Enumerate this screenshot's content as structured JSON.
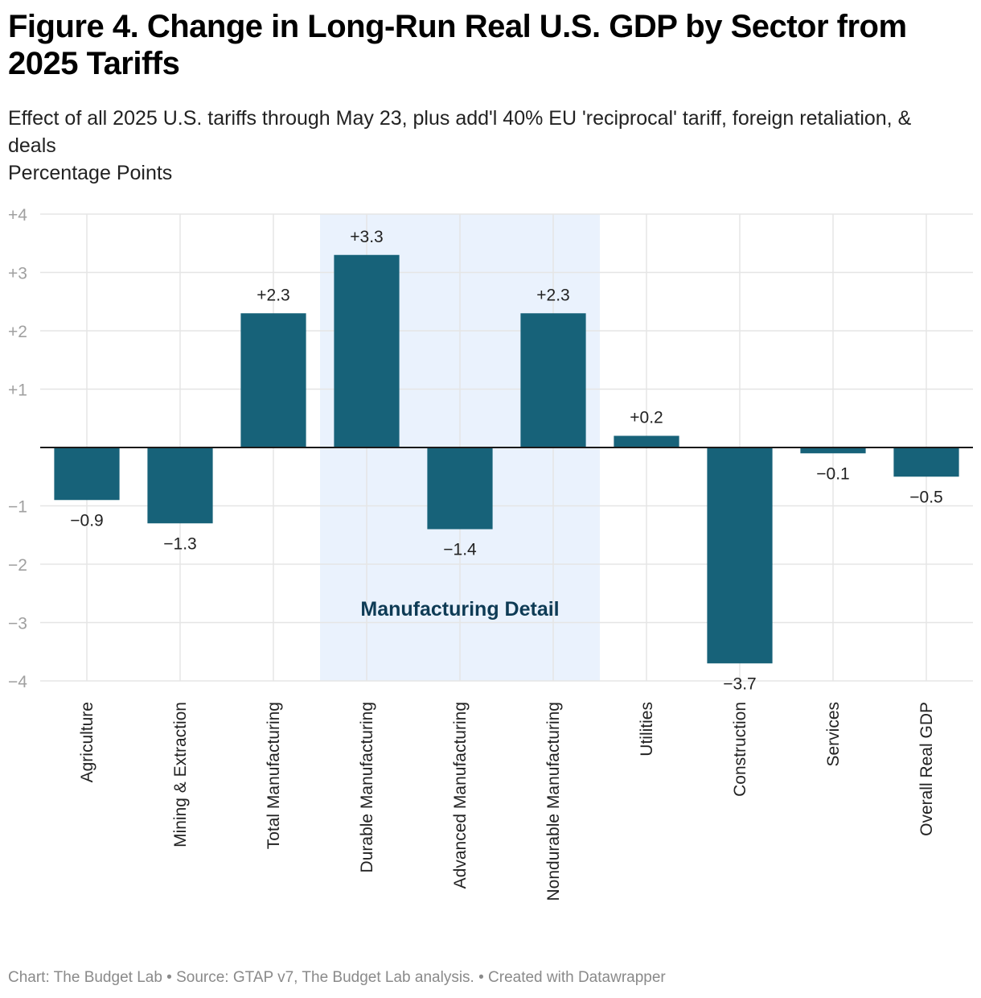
{
  "header": {
    "title": "Figure 4. Change in Long-Run Real U.S. GDP by Sector from 2025 Tariffs",
    "subtitle": "Effect of all 2025 U.S. tariffs through May 23, plus add'l 40% EU 'reciprocal' tariff, foreign retaliation, & deals",
    "unit_label": "Percentage Points"
  },
  "footer": {
    "text": "Chart: The Budget Lab • Source: GTAP v7, The Budget Lab analysis. • Created with Datawrapper"
  },
  "colors": {
    "bar": "#176279",
    "highlight_band": "#eaf2fd",
    "annotation": "#0e3b55",
    "grid": "#e5e5e5",
    "zero_line": "#1a1a1a",
    "tick_label": "#a0a0a0",
    "value_label": "#222222"
  },
  "chart_data": {
    "type": "bar",
    "title": "Figure 4. Change in Long-Run Real U.S. GDP by Sector from 2025 Tariffs",
    "xlabel": "",
    "ylabel": "Percentage Points",
    "ylim": [
      -4,
      4
    ],
    "yticks": [
      4,
      3,
      2,
      1,
      -1,
      -2,
      -3,
      -4
    ],
    "ytick_labels": [
      "+4",
      "+3",
      "+2",
      "+1",
      "−1",
      "−2",
      "−3",
      "−4"
    ],
    "grid": true,
    "categories": [
      "Agriculture",
      "Mining & Extraction",
      "Total Manufacturing",
      "Durable Manufacturing",
      "Advanced Manufacturing",
      "Nondurable Manufacturing",
      "Utilities",
      "Construction",
      "Services",
      "Overall Real GDP"
    ],
    "values": [
      -0.9,
      -1.3,
      2.3,
      3.3,
      -1.4,
      2.3,
      0.2,
      -3.7,
      -0.1,
      -0.5
    ],
    "value_labels": [
      "−0.9",
      "−1.3",
      "+2.3",
      "+3.3",
      "−1.4",
      "+2.3",
      "+0.2",
      "−3.7",
      "−0.1",
      "−0.5"
    ],
    "highlight": {
      "label": "Manufacturing Detail",
      "from_category": "Durable Manufacturing",
      "to_category": "Nondurable Manufacturing"
    }
  }
}
